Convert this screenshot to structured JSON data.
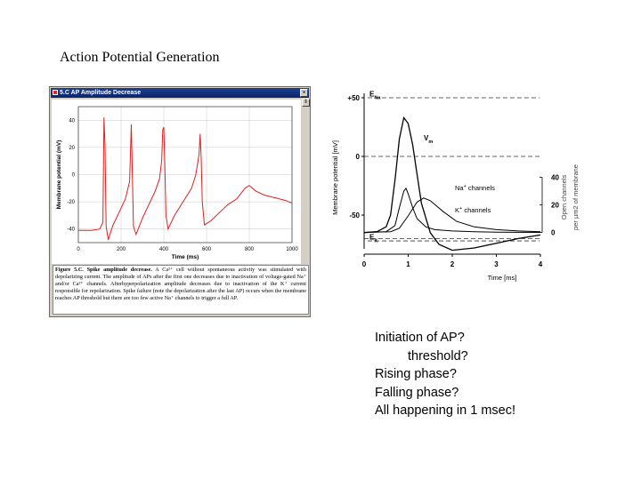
{
  "slide": {
    "title": "Action Potential Generation",
    "questions": [
      "Initiation of AP?",
      "threshold?",
      "Rising phase?",
      "Falling phase?",
      "All happening in 1 msec!"
    ]
  },
  "window": {
    "title": "5.C AP Amplitude Decrease",
    "close_glyph": "×",
    "scroll_glyph": "⇕"
  },
  "figure_left": {
    "caption_label": "Figure 5.C. Spike amplitude decrease.",
    "caption_body": " A Ca²⁺ cell without spontaneous activity was stimulated with depolarizing current. The amplitude of APs after the first one decreases due to inactivation of voltage-gated Na⁺ and/or Ca²⁺ channels. Afterhyperpolarization amplitude decreases due to inactivation of the K⁺ current responsible for repolarization. Spike failure (note the depolarization after the last AP) occurs when the membrane reaches AP threshold but there are too few active Na⁺ channels to trigger a full AP."
  },
  "chart_data": [
    {
      "type": "line",
      "title": "",
      "xlabel": "Time (ms)",
      "ylabel": "Membrane potential (mV)",
      "xlim": [
        0,
        1000
      ],
      "ylim": [
        -50,
        50
      ],
      "x_ticks": [
        0,
        200,
        400,
        600,
        800,
        1000
      ],
      "y_ticks": [
        -40,
        -20,
        0,
        20,
        40
      ],
      "grid": true,
      "series": [
        {
          "color": "#e02020",
          "x": [
            0,
            60,
            100,
            115,
            120,
            125,
            130,
            140,
            160,
            190,
            220,
            240,
            248,
            252,
            258,
            270,
            300,
            330,
            360,
            380,
            390,
            395,
            400,
            405,
            410,
            420,
            450,
            490,
            530,
            550,
            565,
            570,
            575,
            580,
            590,
            620,
            660,
            700,
            740,
            760,
            780,
            800,
            830,
            870,
            920,
            970,
            1000
          ],
          "y": [
            -41,
            -41,
            -40,
            -35,
            42,
            20,
            -38,
            -48,
            -38,
            -28,
            -18,
            -5,
            37,
            5,
            -38,
            -44,
            -32,
            -22,
            -12,
            -3,
            10,
            33,
            35,
            5,
            -30,
            -40,
            -30,
            -20,
            -10,
            0,
            15,
            30,
            12,
            -20,
            -37,
            -34,
            -28,
            -22,
            -18,
            -14,
            -10,
            -8,
            -12,
            -15,
            -17,
            -19,
            -21
          ]
        }
      ]
    },
    {
      "type": "line",
      "title": "",
      "xlabel": "Time [ms]",
      "ylabel": "Membrane potential [mV]",
      "y2label": "Open channels per µm2 of membrane",
      "xlim": [
        0,
        4
      ],
      "ylim": [
        -70,
        50
      ],
      "y2lim": [
        0,
        40
      ],
      "x_ticks": [
        0,
        1,
        2,
        3,
        4
      ],
      "y_ticks": [
        50,
        0,
        -50
      ],
      "y2_ticks": [
        40,
        20,
        0
      ],
      "grid": false,
      "reference_lines": [
        {
          "label": "ENa",
          "label_main": "E",
          "label_sub": "Na",
          "y": 50
        },
        {
          "label": "EK",
          "label_main": "E",
          "label_sub": "K",
          "y": -72
        }
      ],
      "dashed_levels": [
        0,
        -70
      ],
      "series": [
        {
          "name": "Vm",
          "name_main": "V",
          "name_sub": "m",
          "axis": "left",
          "x": [
            0,
            0.3,
            0.5,
            0.6,
            0.7,
            0.8,
            0.9,
            1.0,
            1.1,
            1.2,
            1.3,
            1.5,
            1.7,
            2.0,
            2.5,
            3.0,
            3.5,
            4.0
          ],
          "y": [
            -65,
            -64,
            -60,
            -50,
            -20,
            15,
            33,
            28,
            10,
            -15,
            -40,
            -65,
            -75,
            -80,
            -78,
            -74,
            -70,
            -67
          ]
        },
        {
          "name": "Na+ channels",
          "name_main": "Na",
          "name_sup": "+",
          "name_rest": " channels",
          "axis": "right",
          "x": [
            0,
            0.5,
            0.7,
            0.8,
            0.9,
            0.95,
            1.0,
            1.1,
            1.2,
            1.4,
            1.6,
            2.0,
            2.5,
            3.0,
            4.0
          ],
          "y": [
            0,
            0.5,
            5,
            18,
            30,
            32,
            28,
            18,
            10,
            4,
            2,
            1,
            0.5,
            0.2,
            0
          ]
        },
        {
          "name": "K+ channels",
          "name_main": "K",
          "name_sup": "+",
          "name_rest": " channels",
          "axis": "right",
          "x": [
            0,
            0.6,
            0.8,
            1.0,
            1.2,
            1.35,
            1.5,
            1.8,
            2.1,
            2.5,
            3.0,
            3.5,
            4.0
          ],
          "y": [
            0,
            0.5,
            3,
            12,
            22,
            25,
            23,
            15,
            8,
            4,
            2,
            1,
            0.5
          ]
        }
      ]
    }
  ]
}
